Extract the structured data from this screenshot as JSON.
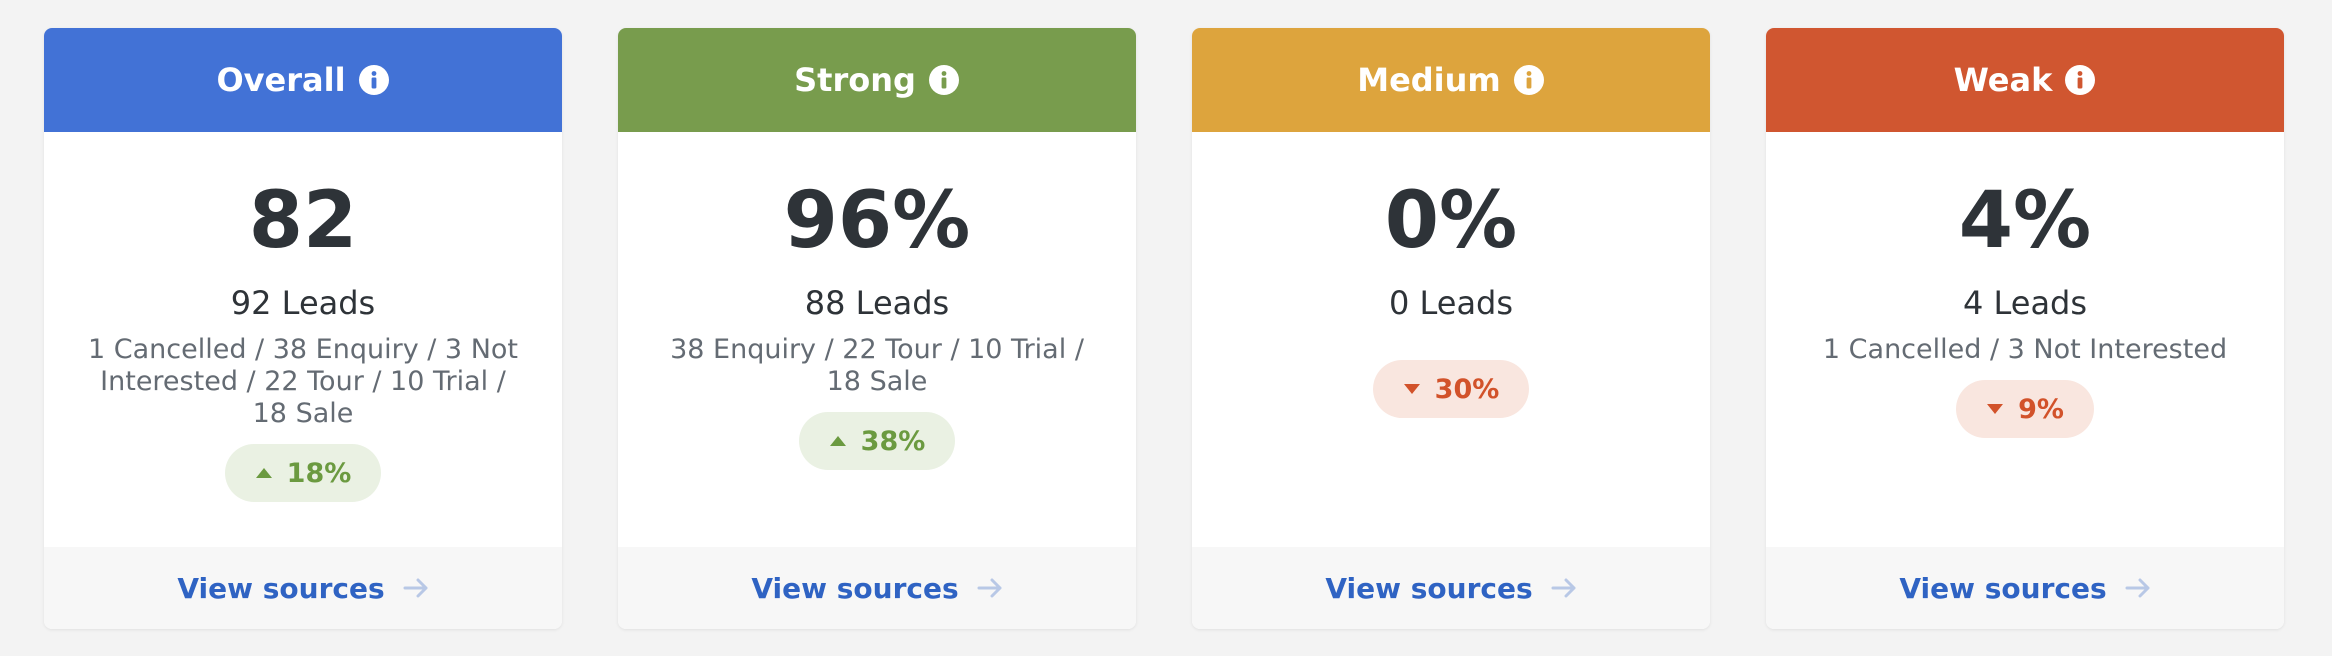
{
  "cards": [
    {
      "title": "Overall",
      "header_color": "#4272d6",
      "icon": "info-icon",
      "value": "82",
      "leads": "92 Leads",
      "breakdown": "1 Cancelled / 38 Enquiry / 3 Not Interested / 22 Tour / 10 Trial / 18 Sale",
      "trend": {
        "direction": "up",
        "text": "18%"
      },
      "footer_link": "View sources"
    },
    {
      "title": "Strong",
      "header_color": "#789c4d",
      "icon": "info-icon",
      "value": "96%",
      "leads": "88 Leads",
      "breakdown": "38 Enquiry / 22 Tour / 10 Trial / 18 Sale",
      "trend": {
        "direction": "up",
        "text": "38%"
      },
      "footer_link": "View sources"
    },
    {
      "title": "Medium",
      "header_color": "#dda43d",
      "icon": "info-icon",
      "value": "0%",
      "leads": "0 Leads",
      "breakdown": "",
      "trend": {
        "direction": "down",
        "text": "30%"
      },
      "footer_link": "View sources"
    },
    {
      "title": "Weak",
      "header_color": "#d05630",
      "icon": "info-icon",
      "value": "4%",
      "leads": "4 Leads",
      "breakdown": "1 Cancelled / 3 Not Interested",
      "trend": {
        "direction": "down",
        "text": "9%"
      },
      "footer_link": "View sources"
    }
  ]
}
